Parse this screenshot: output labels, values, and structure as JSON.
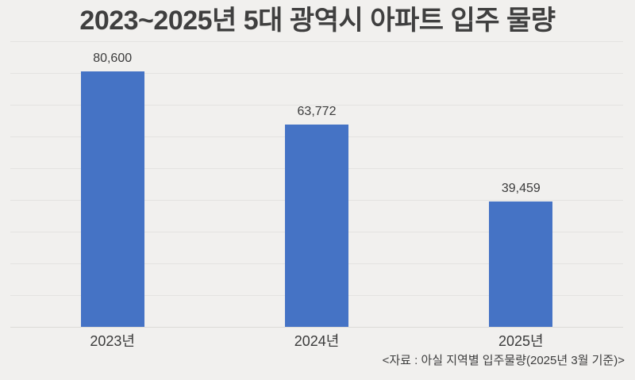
{
  "chart_data": {
    "type": "bar",
    "title": "2023~2025년 5대 광역시 아파트 입주 물량",
    "categories": [
      "2023년",
      "2024년",
      "2025년"
    ],
    "values": [
      80600,
      63772,
      39459
    ],
    "value_labels": [
      "80,600",
      "63,772",
      "39,459"
    ],
    "source_note": "<자료 : 아실 지역별 입주물량(2025년 3월 기준)>",
    "xlabel": "",
    "ylabel": "",
    "ylim": [
      0,
      90000
    ],
    "gridline_step": 10000,
    "grid": "horizontal-only",
    "y_tick_labels_visible": false,
    "legend": "none",
    "colors": {
      "bar": "#4573C5",
      "background": "#F1F0EE",
      "gridline": "#E4E3E1",
      "axis_line": "#DCDBD8",
      "title_text": "#3F3F3F",
      "label_text": "#3B3B3B"
    }
  }
}
